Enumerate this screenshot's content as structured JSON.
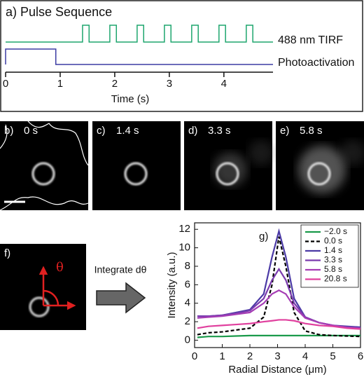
{
  "chart_data": [
    {
      "type": "line",
      "title": "a) Pulse Sequence",
      "xlabel": "Time (s)",
      "xlim": [
        0,
        4.9
      ],
      "xticks": [
        0,
        1,
        2,
        3,
        4
      ],
      "series": [
        {
          "name": "488 nm TIRF",
          "color": "#1ea66e",
          "x": [
            0,
            1.41,
            1.41,
            1.53,
            1.53,
            1.91,
            1.91,
            2.03,
            2.03,
            2.41,
            2.41,
            2.53,
            2.53,
            2.91,
            2.91,
            3.03,
            3.03,
            3.41,
            3.41,
            3.53,
            3.53,
            3.91,
            3.91,
            4.03,
            4.03,
            4.41,
            4.41,
            4.53,
            4.53,
            4.9
          ],
          "values": [
            0,
            0,
            1,
            1,
            0,
            0,
            1,
            1,
            0,
            0,
            1,
            1,
            0,
            0,
            1,
            1,
            0,
            0,
            1,
            1,
            0,
            0,
            1,
            1,
            0,
            0,
            1,
            1,
            0,
            0
          ]
        },
        {
          "name": "Photoactivation",
          "color": "#3b3ba3",
          "x": [
            0,
            0,
            0.92,
            0.92,
            4.9
          ],
          "values": [
            0,
            1,
            1,
            0,
            0
          ]
        }
      ]
    },
    {
      "type": "line",
      "panel_label": "g)",
      "xlabel": "Radial Distance (μm)",
      "ylabel": "Intensity (a.u.)",
      "xlim": [
        0,
        6
      ],
      "xticks": [
        0,
        1,
        2,
        3,
        4,
        5,
        6
      ],
      "ylim": [
        -0.8,
        12.7
      ],
      "yticks": [
        0,
        2,
        4,
        6,
        8,
        10,
        12
      ],
      "legend": "upper right",
      "x": [
        0.1,
        0.5,
        1,
        1.5,
        2,
        2.5,
        2.8,
        3.05,
        3.3,
        3.6,
        4,
        4.5,
        5,
        5.5,
        6
      ],
      "series": [
        {
          "name": "−2.0 s",
          "color": "#1a9a4a",
          "values": [
            0.3,
            0.4,
            0.4,
            0.45,
            0.5,
            0.5,
            0.5,
            0.5,
            0.5,
            0.5,
            0.5,
            0.5,
            0.5,
            0.5,
            0.5
          ]
        },
        {
          "name": "0.0 s",
          "color": "#000000",
          "dashed": true,
          "values": [
            0.6,
            0.8,
            0.9,
            1.1,
            1.3,
            2.5,
            6,
            11.2,
            8,
            3,
            1,
            0.6,
            0.5,
            0.45,
            0.4
          ]
        },
        {
          "name": "1.4 s",
          "color": "#4b3aa6",
          "values": [
            2.6,
            2.6,
            2.7,
            3,
            3.3,
            5,
            9,
            11.8,
            9,
            4.5,
            2.5,
            1.9,
            1.6,
            1.5,
            1.4
          ]
        },
        {
          "name": "3.3 s",
          "color": "#7a3aae",
          "values": [
            2.6,
            2.6,
            2.7,
            2.9,
            3.2,
            4.5,
            6.5,
            7.7,
            6.5,
            4,
            2.5,
            1.9,
            1.6,
            1.4,
            1.3
          ]
        },
        {
          "name": "5.8 s",
          "color": "#a63db4",
          "values": [
            2.4,
            2.5,
            2.6,
            2.8,
            3,
            4,
            5,
            5.4,
            5,
            3.6,
            2.4,
            1.9,
            1.6,
            1.4,
            1.3
          ]
        },
        {
          "name": "20.8 s",
          "color": "#e0409e",
          "values": [
            1.3,
            1.5,
            1.6,
            1.7,
            1.8,
            2,
            2.1,
            2.2,
            2.2,
            2.1,
            1.8,
            1.6,
            1.5,
            1.3,
            1.2
          ]
        }
      ]
    }
  ],
  "images": [
    {
      "label": "b)",
      "caption": "0 s"
    },
    {
      "label": "c)",
      "caption": "1.4 s"
    },
    {
      "label": "d)",
      "caption": "3.3 s"
    },
    {
      "label": "e)",
      "caption": "5.8 s"
    }
  ],
  "panel_f": {
    "label": "f)",
    "angle": "θ"
  },
  "arrow_label": "Integrate dθ"
}
